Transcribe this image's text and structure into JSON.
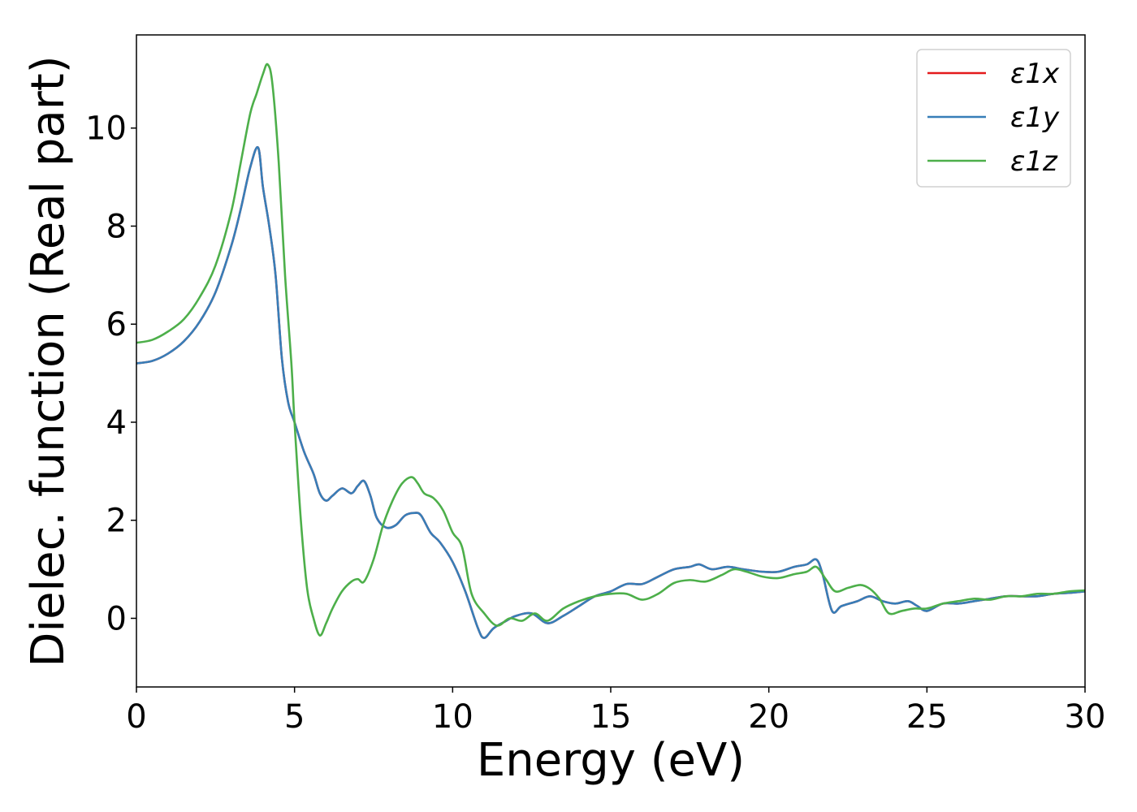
{
  "chart_data": {
    "type": "line",
    "title": "",
    "xlabel": "Energy (eV)",
    "ylabel": "Dielec. function (Real part)",
    "xlim": [
      0,
      30
    ],
    "ylim": [
      -1.4,
      11.9
    ],
    "xticks": [
      0,
      5,
      10,
      15,
      20,
      25,
      30
    ],
    "yticks": [
      0,
      2,
      4,
      6,
      8,
      10
    ],
    "grid": false,
    "legend": "top-right",
    "series": [
      {
        "name": "ε1x",
        "color": "#e41a1c",
        "x": [
          0,
          0.5,
          1,
          1.5,
          2,
          2.5,
          3,
          3.3,
          3.6,
          3.85,
          4.0,
          4.2,
          4.4,
          4.6,
          4.8,
          5.0,
          5.3,
          5.6,
          5.8,
          6.0,
          6.2,
          6.5,
          6.8,
          7.0,
          7.2,
          7.4,
          7.6,
          7.9,
          8.2,
          8.5,
          8.8,
          9.0,
          9.3,
          9.6,
          10.0,
          10.4,
          10.8,
          11.0,
          11.3,
          11.7,
          12.0,
          12.5,
          13.0,
          13.5,
          14.0,
          14.5,
          15.0,
          15.5,
          16.0,
          16.5,
          17.0,
          17.5,
          17.8,
          18.2,
          18.7,
          19.2,
          19.8,
          20.3,
          20.8,
          21.2,
          21.5,
          21.7,
          22.0,
          22.3,
          22.8,
          23.2,
          23.6,
          24.0,
          24.4,
          24.7,
          25.0,
          25.5,
          26.0,
          26.5,
          27.0,
          27.5,
          28.0,
          28.5,
          29.0,
          29.5,
          30.0
        ],
        "values": [
          5.2,
          5.25,
          5.4,
          5.65,
          6.05,
          6.65,
          7.6,
          8.35,
          9.2,
          9.6,
          8.8,
          8.0,
          7.0,
          5.3,
          4.4,
          4.0,
          3.4,
          2.95,
          2.55,
          2.4,
          2.5,
          2.65,
          2.55,
          2.7,
          2.8,
          2.5,
          2.05,
          1.85,
          1.9,
          2.1,
          2.15,
          2.1,
          1.75,
          1.55,
          1.15,
          0.55,
          -0.2,
          -0.4,
          -0.2,
          -0.05,
          0.05,
          0.1,
          -0.1,
          0.05,
          0.25,
          0.45,
          0.55,
          0.7,
          0.7,
          0.85,
          1.0,
          1.05,
          1.1,
          1.0,
          1.05,
          1.0,
          0.95,
          0.95,
          1.05,
          1.1,
          1.2,
          0.9,
          0.15,
          0.25,
          0.35,
          0.45,
          0.35,
          0.3,
          0.35,
          0.25,
          0.15,
          0.3,
          0.3,
          0.35,
          0.4,
          0.45,
          0.45,
          0.45,
          0.5,
          0.52,
          0.55
        ]
      },
      {
        "name": "ε1y",
        "color": "#377eb8",
        "x": [
          0,
          0.5,
          1,
          1.5,
          2,
          2.5,
          3,
          3.3,
          3.6,
          3.85,
          4.0,
          4.2,
          4.4,
          4.6,
          4.8,
          5.0,
          5.3,
          5.6,
          5.8,
          6.0,
          6.2,
          6.5,
          6.8,
          7.0,
          7.2,
          7.4,
          7.6,
          7.9,
          8.2,
          8.5,
          8.8,
          9.0,
          9.3,
          9.6,
          10.0,
          10.4,
          10.8,
          11.0,
          11.3,
          11.7,
          12.0,
          12.5,
          13.0,
          13.5,
          14.0,
          14.5,
          15.0,
          15.5,
          16.0,
          16.5,
          17.0,
          17.5,
          17.8,
          18.2,
          18.7,
          19.2,
          19.8,
          20.3,
          20.8,
          21.2,
          21.5,
          21.7,
          22.0,
          22.3,
          22.8,
          23.2,
          23.6,
          24.0,
          24.4,
          24.7,
          25.0,
          25.5,
          26.0,
          26.5,
          27.0,
          27.5,
          28.0,
          28.5,
          29.0,
          29.5,
          30.0
        ],
        "values": [
          5.2,
          5.25,
          5.4,
          5.65,
          6.05,
          6.65,
          7.6,
          8.35,
          9.2,
          9.6,
          8.8,
          8.0,
          7.0,
          5.3,
          4.4,
          4.0,
          3.4,
          2.95,
          2.55,
          2.4,
          2.5,
          2.65,
          2.55,
          2.7,
          2.8,
          2.5,
          2.05,
          1.85,
          1.9,
          2.1,
          2.15,
          2.1,
          1.75,
          1.55,
          1.15,
          0.55,
          -0.2,
          -0.4,
          -0.2,
          -0.05,
          0.05,
          0.1,
          -0.1,
          0.05,
          0.25,
          0.45,
          0.55,
          0.7,
          0.7,
          0.85,
          1.0,
          1.05,
          1.1,
          1.0,
          1.05,
          1.0,
          0.95,
          0.95,
          1.05,
          1.1,
          1.2,
          0.9,
          0.15,
          0.25,
          0.35,
          0.45,
          0.35,
          0.3,
          0.35,
          0.25,
          0.15,
          0.3,
          0.3,
          0.35,
          0.4,
          0.45,
          0.45,
          0.45,
          0.5,
          0.52,
          0.55
        ]
      },
      {
        "name": "ε1z",
        "color": "#4daf4a",
        "x": [
          0,
          0.5,
          1,
          1.5,
          2,
          2.5,
          3,
          3.3,
          3.6,
          3.8,
          4.0,
          4.15,
          4.3,
          4.5,
          4.7,
          4.9,
          5.0,
          5.2,
          5.4,
          5.6,
          5.8,
          6.0,
          6.2,
          6.5,
          6.8,
          7.0,
          7.2,
          7.5,
          7.8,
          8.1,
          8.4,
          8.7,
          8.9,
          9.1,
          9.4,
          9.7,
          10.0,
          10.3,
          10.6,
          11.0,
          11.4,
          11.8,
          12.2,
          12.6,
          13.0,
          13.5,
          14.0,
          14.5,
          15.0,
          15.5,
          16.0,
          16.5,
          17.0,
          17.5,
          18.0,
          18.5,
          18.9,
          19.3,
          19.8,
          20.3,
          20.8,
          21.2,
          21.5,
          21.8,
          22.1,
          22.5,
          22.9,
          23.2,
          23.5,
          23.8,
          24.2,
          24.6,
          25.0,
          25.5,
          26.0,
          26.5,
          27.0,
          27.5,
          28.0,
          28.5,
          29.0,
          29.5,
          30.0
        ],
        "values": [
          5.62,
          5.68,
          5.85,
          6.1,
          6.55,
          7.2,
          8.3,
          9.3,
          10.3,
          10.7,
          11.1,
          11.3,
          10.9,
          9.3,
          7.0,
          5.2,
          4.0,
          2.0,
          0.6,
          0.0,
          -0.35,
          -0.1,
          0.2,
          0.55,
          0.75,
          0.8,
          0.75,
          1.2,
          1.9,
          2.4,
          2.75,
          2.88,
          2.75,
          2.55,
          2.45,
          2.2,
          1.75,
          1.45,
          0.5,
          0.1,
          -0.15,
          0.0,
          -0.05,
          0.1,
          -0.05,
          0.2,
          0.35,
          0.45,
          0.5,
          0.5,
          0.38,
          0.5,
          0.72,
          0.78,
          0.75,
          0.88,
          1.0,
          0.95,
          0.85,
          0.82,
          0.9,
          0.95,
          1.05,
          0.8,
          0.55,
          0.62,
          0.68,
          0.6,
          0.4,
          0.1,
          0.15,
          0.2,
          0.2,
          0.3,
          0.35,
          0.4,
          0.38,
          0.45,
          0.45,
          0.5,
          0.5,
          0.55,
          0.57
        ]
      }
    ]
  }
}
